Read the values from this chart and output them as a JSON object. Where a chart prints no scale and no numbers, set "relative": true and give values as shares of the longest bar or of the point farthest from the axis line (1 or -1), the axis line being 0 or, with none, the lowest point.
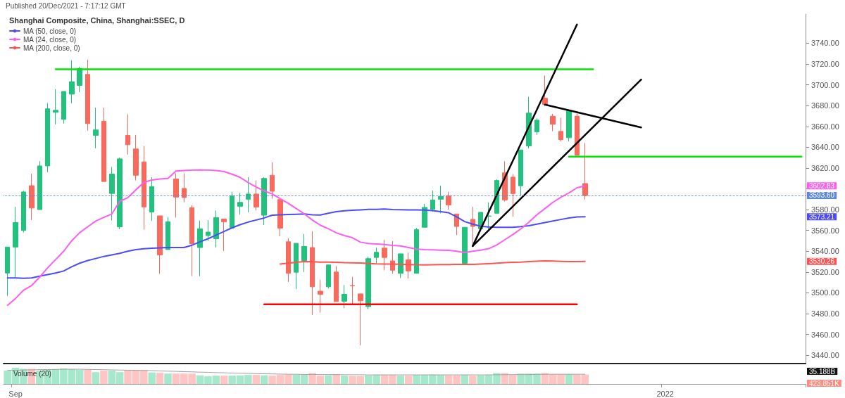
{
  "chart_data": [
    {
      "type": "candlestick",
      "title": "Shanghai Composite, China, Shanghai:SSEC, D",
      "categories": [
        null,
        null,
        null,
        null,
        null,
        null,
        null,
        null,
        null,
        null,
        null,
        null,
        null,
        null,
        null,
        null,
        null,
        null,
        null,
        null,
        null,
        null,
        null,
        null,
        null,
        null,
        null,
        null,
        null,
        null,
        null,
        null,
        null,
        null,
        null,
        null,
        null,
        null,
        null,
        null,
        null,
        null,
        null,
        null,
        null,
        null,
        null,
        null,
        null,
        null,
        null,
        null,
        null,
        null,
        null,
        null,
        null,
        null,
        null,
        null,
        null,
        null,
        null,
        null,
        null,
        null,
        null,
        null,
        null,
        null,
        null,
        null,
        null,
        null,
        null,
        null,
        null,
        null,
        null,
        null,
        null,
        null,
        null,
        null,
        null,
        null,
        null,
        null,
        null,
        null,
        null,
        null,
        null,
        null,
        null,
        null,
        null,
        null,
        null,
        null
      ],
      "ohlc": [
        [
          3519,
          3544,
          3497,
          3544
        ],
        [
          3544,
          3582.6,
          3515,
          3567.5
        ],
        [
          3560,
          3598,
          3558,
          3597
        ],
        [
          3603,
          3614.6,
          3570,
          3581.5
        ],
        [
          3580,
          3626.6,
          3580,
          3622
        ],
        [
          3622,
          3682.5,
          3616,
          3676.9
        ],
        [
          3673.5,
          3695.8,
          3662,
          3675.5
        ],
        [
          3666.7,
          3693.6,
          3662.7,
          3693.6
        ],
        [
          3691,
          3723.6,
          3682.3,
          3703
        ],
        [
          3699.4,
          3717.2,
          3693,
          3715.7
        ],
        [
          3710,
          3724.2,
          3655.9,
          3662.7
        ],
        [
          3651.4,
          3678,
          3639,
          3656.6
        ],
        [
          3665,
          3678,
          3607,
          3607
        ],
        [
          3595.5,
          3621,
          3569.7,
          3614.2
        ],
        [
          3563.4,
          3630,
          3561.2,
          3628.8
        ],
        [
          3651.4,
          3671.7,
          3632.9,
          3642.4
        ],
        [
          3638.3,
          3651.8,
          3608,
          3613
        ],
        [
          3625.9,
          3641.2,
          3560.7,
          3582.6
        ],
        [
          3577.6,
          3611.2,
          3569.1,
          3602.2
        ],
        [
          3574,
          3574,
          3518.3,
          3536.4
        ],
        [
          3541.6,
          3572.9,
          3541.6,
          3568.4
        ],
        [
          3609.4,
          3614.9,
          3572.4,
          3592
        ],
        [
          3600.4,
          3614.9,
          3587,
          3591.6
        ],
        [
          3581.9,
          3584.2,
          3516.1,
          3547.2
        ],
        [
          3543.5,
          3569.4,
          3516,
          3561.6
        ],
        [
          3555,
          3570,
          3549.8,
          3558.4
        ],
        [
          3552,
          3579.1,
          3543.5,
          3572.4
        ],
        [
          3571,
          3571,
          3540.3,
          3568.3
        ],
        [
          3562.2,
          3597.2,
          3562.2,
          3593.3
        ],
        [
          3583.2,
          3596,
          3575.1,
          3587
        ],
        [
          3590,
          3611.2,
          3577.3,
          3595
        ],
        [
          3595,
          3608,
          3579.1,
          3582.5
        ],
        [
          3574.6,
          3611.2,
          3565.2,
          3610
        ],
        [
          3613,
          3625.4,
          3590.4,
          3597.6
        ],
        [
          3589.7,
          3589.7,
          3554.3,
          3562.2
        ],
        [
          3549.1,
          3552.5,
          3510.4,
          3518.7
        ],
        [
          3519.8,
          3547.6,
          3503.6,
          3547.6
        ],
        [
          3530.7,
          3556.6,
          3520,
          3544.6
        ],
        [
          3543.5,
          3559.3,
          3478.8,
          3505.8
        ],
        [
          3501.6,
          3512.6,
          3481,
          3498.6
        ],
        [
          3505.8,
          3526.8,
          3504.3,
          3526.8
        ],
        [
          3520,
          3525.7,
          3491.6,
          3491.6
        ],
        [
          3491.9,
          3507.4,
          3485.1,
          3498.6
        ],
        [
          3507,
          3515.3,
          3489.4,
          3506.6
        ],
        [
          3499,
          3499,
          3449.5,
          3492.3
        ],
        [
          3486.7,
          3534.5,
          3484.4,
          3532.9
        ],
        [
          3534,
          3543.5,
          3528.4,
          3539
        ],
        [
          3543,
          3551,
          3521.6,
          3534
        ],
        [
          3530.7,
          3549.9,
          3518.3,
          3521.7
        ],
        [
          3518.7,
          3537.5,
          3514.2,
          3537.5
        ],
        [
          3531.8,
          3538.6,
          3513.8,
          3521
        ],
        [
          3518.7,
          3562.3,
          3518.7,
          3560.7
        ],
        [
          3563,
          3585.5,
          3563,
          3582.1
        ],
        [
          3580.3,
          3598.4,
          3578.1,
          3589.3
        ],
        [
          3590,
          3602.9,
          3576.5,
          3592.7
        ],
        [
          3593.2,
          3597.2,
          3579.9,
          3584.4
        ],
        [
          3575.8,
          3575.8,
          3555.5,
          3563.8
        ],
        [
          3528.4,
          3563,
          3526.9,
          3563
        ],
        [
          3570.6,
          3582.6,
          3546.5,
          3563.8
        ],
        [
          3561.6,
          3577.4,
          3561.6,
          3577.4
        ],
        [
          3573.6,
          3587,
          3561,
          3573.9
        ],
        [
          3576.5,
          3609,
          3576.5,
          3608
        ],
        [
          3615.3,
          3626.5,
          3587.8,
          3589.3
        ],
        [
          3611.2,
          3614.1,
          3573.1,
          3595.4
        ],
        [
          3602.9,
          3637.4,
          3592.7,
          3637.4
        ],
        [
          3641.2,
          3688.6,
          3638.9,
          3672.8
        ],
        [
          3654.7,
          3667.6,
          3651.8,
          3666
        ],
        [
          3687,
          3708.9,
          3679.5,
          3681.1
        ],
        [
          3669.8,
          3672.1,
          3655.4,
          3662
        ],
        [
          3655.2,
          3668.3,
          3645.7,
          3647.3
        ],
        [
          3649.1,
          3676.2,
          3645.7,
          3675
        ],
        [
          3669.8,
          3672.8,
          3632.2,
          3632.2
        ],
        [
          3605.1,
          3644.1,
          3589.8,
          3593.6
        ],
        null,
        null,
        null,
        null,
        null,
        null,
        null,
        null,
        null,
        null,
        null,
        null,
        null,
        null,
        null,
        null,
        null,
        null,
        null,
        null,
        null,
        null,
        null,
        null,
        null,
        null,
        null
      ],
      "colors": [
        "#22c17e",
        "#22c17e",
        "#22c17e",
        "#f96a5d",
        "#22c17e",
        "#22c17e",
        "#22c17e",
        "#22c17e",
        "#22c17e",
        "#22c17e",
        "#f96a5d",
        "#22c17e",
        "#f96a5d",
        "#22c17e",
        "#22c17e",
        "#f96a5d",
        "#f96a5d",
        "#f96a5d",
        "#22c17e",
        "#f96a5d",
        "#22c17e",
        "#f96a5d",
        "#f96a5d",
        "#f96a5d",
        "#22c17e",
        "#22c17e",
        "#22c17e",
        "#f96a5d",
        "#22c17e",
        "#22c17e",
        "#22c17e",
        "#f96a5d",
        "#22c17e",
        "#f96a5d",
        "#f96a5d",
        "#f96a5d",
        "#22c17e",
        "#22c17e",
        "#f96a5d",
        "#f96a5d",
        "#22c17e",
        "#f96a5d",
        "#22c17e",
        "#f96a5d",
        "#f96a5d",
        "#22c17e",
        "#22c17e",
        "#f96a5d",
        "#f96a5d",
        "#22c17e",
        "#f96a5d",
        "#22c17e",
        "#22c17e",
        "#22c17e",
        "#22c17e",
        "#f96a5d",
        "#f96a5d",
        "#22c17e",
        "#f96a5d",
        "#22c17e",
        "#22c17e",
        "#22c17e",
        "#f96a5d",
        "#f96a5d",
        "#22c17e",
        "#22c17e",
        "#22c17e",
        "#f96a5d",
        "#f96a5d",
        "#f96a5d",
        "#22c17e",
        "#f96a5d",
        "#f96a5d",
        null,
        null,
        null,
        null,
        null,
        null,
        null,
        null,
        null,
        null,
        null,
        null,
        null,
        null,
        null,
        null,
        null,
        null,
        null,
        null,
        null,
        null,
        null,
        null,
        null,
        null,
        null
      ],
      "series": [
        {
          "type": "line",
          "name": "MA (50, close, 0)",
          "color": "#4b4bff",
          "values": [
            3514.3,
            3514.3,
            3514,
            3514.3,
            3516,
            3517.5,
            3519,
            3521,
            3525,
            3528.5,
            3531,
            3533,
            3535,
            3536.5,
            3538,
            3540,
            3541.5,
            3542.3,
            3542.8,
            3543.2,
            3543.6,
            3543.6,
            3543.6,
            3545.8,
            3549,
            3552,
            3555.5,
            3559,
            3562.5,
            3565.5,
            3568,
            3570,
            3572,
            3574.6,
            3575,
            3575.3,
            3575.5,
            3575.8,
            3575,
            3574.8,
            3576.5,
            3578,
            3578.8,
            3579.3,
            3579.8,
            3580.2,
            3580.3,
            3580.5,
            3580,
            3579.9,
            3579.8,
            3579.7,
            3579.6,
            3579,
            3578,
            3577,
            3573,
            3568.5,
            3566,
            3564,
            3563.3,
            3563,
            3563,
            3563,
            3563.6,
            3564.5,
            3566,
            3567.5,
            3569,
            3570.5,
            3572,
            3573,
            3573.21,
            null,
            null,
            null,
            null,
            null,
            null,
            null,
            null,
            null,
            null,
            null,
            null,
            null,
            null,
            null,
            null,
            null,
            null,
            null,
            null,
            null,
            null,
            null,
            null,
            null,
            null,
            null
          ]
        },
        {
          "type": "line",
          "name": "MA (24, close, 0)",
          "color": "#ff5cf0",
          "values": [
            3488,
            3494.6,
            3502.5,
            3507,
            3515,
            3524,
            3532,
            3540,
            3550,
            3557.8,
            3563.5,
            3569,
            3572.5,
            3575.8,
            3588,
            3591.5,
            3599,
            3606.3,
            3608.5,
            3609.5,
            3610,
            3617,
            3617.6,
            3618,
            3618.2,
            3618,
            3617.5,
            3616.6,
            3614,
            3611,
            3606,
            3601.7,
            3598,
            3595,
            3590.5,
            3586,
            3581,
            3576,
            3570,
            3565,
            3561.5,
            3557.7,
            3555,
            3553,
            3548.7,
            3547.5,
            3547,
            3546.4,
            3545.5,
            3545,
            3543.5,
            3542,
            3541.5,
            3541.3,
            3541,
            3540.8,
            3540,
            3538.6,
            3540,
            3541,
            3542.5,
            3546,
            3551,
            3556,
            3561.5,
            3567.9,
            3575,
            3581,
            3587,
            3592,
            3596,
            3601,
            3602.83,
            null,
            null,
            null,
            null,
            null,
            null,
            null,
            null,
            null,
            null,
            null,
            null,
            null,
            null,
            null,
            null,
            null,
            null,
            null,
            null,
            null,
            null,
            null,
            null,
            null,
            null,
            null
          ]
        },
        {
          "type": "line",
          "name": "MA (200, close, 0)",
          "color": "#ff5252",
          "values": [
            null,
            null,
            null,
            null,
            null,
            null,
            null,
            null,
            null,
            null,
            null,
            null,
            null,
            null,
            null,
            null,
            null,
            null,
            null,
            null,
            null,
            null,
            null,
            null,
            null,
            null,
            null,
            null,
            null,
            null,
            null,
            null,
            null,
            null,
            3527.7,
            3528.5,
            3529.3,
            3530,
            3529.8,
            3529.6,
            3529.5,
            3529.3,
            3529,
            3528.9,
            3528.6,
            3528.2,
            3527.8,
            3527.7,
            3527.6,
            3527.4,
            3527.2,
            3527,
            3526.9,
            3527,
            3527.1,
            3527.2,
            3527.3,
            3527.3,
            3527.3,
            3527.6,
            3528,
            3528.5,
            3529,
            3529.4,
            3529.6,
            3530,
            3530.4,
            3530.7,
            3530.5,
            3530.2,
            3530,
            3530.1,
            3530.26,
            null,
            null,
            null,
            null,
            null,
            null,
            null,
            null,
            null,
            null,
            null,
            null,
            null,
            null,
            null,
            null,
            null,
            null,
            null,
            null,
            null,
            null,
            null,
            null,
            null,
            null,
            null
          ]
        },
        {
          "type": "line",
          "color": "#00e600",
          "values": [
            null,
            null,
            null,
            null,
            null,
            null,
            3715,
            null,
            null,
            null,
            null,
            null,
            null,
            null,
            null,
            null,
            null,
            null,
            null,
            null,
            null,
            null,
            null,
            null,
            null,
            null,
            null,
            null,
            null,
            null,
            null,
            null,
            null,
            null,
            null,
            null,
            null,
            null,
            null,
            null,
            null,
            null,
            null,
            null,
            null,
            null,
            null,
            null,
            null,
            null,
            null,
            null,
            null,
            null,
            null,
            null,
            null,
            null,
            null,
            null,
            null,
            null,
            null,
            null,
            null,
            null,
            null,
            null,
            null,
            null,
            null,
            null,
            null,
            3715,
            null,
            null,
            null,
            null,
            null,
            null,
            null,
            null,
            null,
            null,
            null,
            null,
            null,
            null,
            null,
            null,
            null,
            null,
            null,
            null,
            null,
            null,
            null,
            null,
            null,
            null
          ]
        },
        {
          "type": "line",
          "color": "#00e600",
          "values": [
            null,
            null,
            null,
            null,
            null,
            null,
            null,
            null,
            null,
            null,
            null,
            null,
            null,
            null,
            null,
            null,
            null,
            null,
            null,
            null,
            null,
            null,
            null,
            null,
            null,
            null,
            null,
            null,
            null,
            null,
            null,
            null,
            null,
            null,
            null,
            null,
            null,
            null,
            null,
            null,
            null,
            null,
            null,
            null,
            null,
            null,
            null,
            null,
            null,
            null,
            null,
            null,
            null,
            null,
            null,
            null,
            null,
            null,
            null,
            null,
            null,
            null,
            null,
            null,
            null,
            null,
            null,
            null,
            null,
            null,
            3631,
            null,
            null,
            null,
            null,
            null,
            null,
            null,
            null,
            null,
            null,
            null,
            null,
            null,
            null,
            null,
            null,
            null,
            null,
            null,
            null,
            null,
            null,
            null,
            null,
            null,
            null,
            null,
            null,
            3631
          ]
        },
        {
          "type": "line",
          "color": "#ff0000",
          "values": [
            null,
            null,
            null,
            null,
            null,
            null,
            null,
            null,
            null,
            null,
            null,
            null,
            null,
            null,
            null,
            null,
            null,
            null,
            null,
            null,
            null,
            null,
            null,
            null,
            null,
            null,
            null,
            null,
            null,
            null,
            null,
            null,
            3489,
            null,
            null,
            null,
            null,
            null,
            null,
            null,
            null,
            null,
            null,
            null,
            null,
            null,
            null,
            null,
            null,
            null,
            null,
            null,
            null,
            null,
            null,
            null,
            null,
            null,
            null,
            null,
            null,
            null,
            null,
            null,
            null,
            null,
            null,
            null,
            null,
            null,
            null,
            3489,
            null,
            null,
            null,
            null,
            null,
            null,
            null,
            null,
            null,
            null,
            null,
            null,
            null,
            null,
            null,
            null,
            null,
            null,
            null,
            null,
            null,
            null,
            null,
            null,
            null,
            null,
            null,
            null
          ]
        },
        {
          "type": "line",
          "color": "#000000",
          "values": [
            null,
            null,
            null,
            null,
            null,
            null,
            null,
            null,
            null,
            null,
            null,
            null,
            null,
            null,
            null,
            null,
            null,
            null,
            null,
            null,
            null,
            null,
            null,
            null,
            null,
            null,
            null,
            null,
            null,
            null,
            null,
            null,
            null,
            null,
            null,
            null,
            null,
            null,
            null,
            null,
            null,
            null,
            null,
            null,
            null,
            null,
            null,
            null,
            null,
            null,
            null,
            null,
            null,
            null,
            null,
            null,
            null,
            null,
            3545,
            null,
            null,
            null,
            null,
            null,
            null,
            null,
            null,
            null,
            null,
            null,
            null,
            3758,
            null,
            null,
            null,
            null,
            null,
            null,
            null,
            null,
            null,
            null,
            null,
            null,
            null,
            null,
            null,
            null,
            null,
            null,
            null,
            null,
            null,
            null,
            null,
            null,
            null,
            null,
            null,
            null
          ]
        },
        {
          "type": "line",
          "color": "#000000",
          "values": [
            null,
            null,
            null,
            null,
            null,
            null,
            null,
            null,
            null,
            null,
            null,
            null,
            null,
            null,
            null,
            null,
            null,
            null,
            null,
            null,
            null,
            null,
            null,
            null,
            null,
            null,
            null,
            null,
            null,
            null,
            null,
            null,
            null,
            null,
            null,
            null,
            null,
            null,
            null,
            null,
            null,
            null,
            null,
            null,
            null,
            null,
            null,
            null,
            null,
            null,
            null,
            null,
            null,
            null,
            null,
            null,
            null,
            null,
            3545,
            null,
            null,
            null,
            null,
            null,
            null,
            null,
            null,
            null,
            null,
            null,
            null,
            null,
            null,
            null,
            null,
            null,
            null,
            null,
            null,
            3705,
            null,
            null,
            null,
            null,
            null,
            null,
            null,
            null,
            null,
            null,
            null,
            null,
            null,
            null,
            null,
            null,
            null,
            null,
            null,
            null
          ]
        },
        {
          "type": "line",
          "color": "#000000",
          "values": [
            null,
            null,
            null,
            null,
            null,
            null,
            null,
            null,
            null,
            null,
            null,
            null,
            null,
            null,
            null,
            null,
            null,
            null,
            null,
            null,
            null,
            null,
            null,
            null,
            null,
            null,
            null,
            null,
            null,
            null,
            null,
            null,
            null,
            null,
            null,
            null,
            null,
            null,
            null,
            null,
            null,
            null,
            null,
            null,
            null,
            null,
            null,
            null,
            null,
            null,
            null,
            null,
            null,
            null,
            null,
            null,
            null,
            null,
            null,
            null,
            null,
            null,
            null,
            null,
            null,
            null,
            null,
            3681,
            null,
            null,
            null,
            null,
            null,
            null,
            null,
            null,
            null,
            null,
            null,
            3659,
            null,
            null,
            null,
            null,
            null,
            null,
            null,
            null,
            null,
            null,
            null,
            null,
            null,
            null,
            null,
            null,
            null,
            null,
            null,
            null
          ]
        }
      ],
      "ylim": [
        3432,
        3768
      ],
      "yticks": [
        {
          "value": 3440,
          "label": "3440.00"
        },
        {
          "value": 3460,
          "label": "3460.00"
        },
        {
          "value": 3480,
          "label": "3480.00"
        },
        {
          "value": 3500,
          "label": "3500.00"
        },
        {
          "value": 3520,
          "label": "3520.00"
        },
        {
          "value": 3540,
          "label": "3540.00"
        },
        {
          "value": 3560,
          "label": "3560.00"
        },
        {
          "value": 3580,
          "label": "3580.00"
        },
        {
          "value": 3600,
          "label": null
        },
        {
          "value": 3620,
          "label": "3620.00"
        },
        {
          "value": 3640,
          "label": "3640.00"
        },
        {
          "value": 3660,
          "label": "3660.00"
        },
        {
          "value": 3680,
          "label": "3680.00"
        },
        {
          "value": 3700,
          "label": "3700.00"
        },
        {
          "value": 3720,
          "label": "3720.00"
        },
        {
          "value": 3740,
          "label": "3740.00"
        }
      ],
      "ref_lines": [
        {
          "axis": "y",
          "value": 3593.6,
          "label": "3593.60",
          "color": "#5b86e5",
          "line_style": "dotted"
        }
      ],
      "annotations": [
        "Published 20/Dec/2021 - 7:17:12 GMT",
        "3573.21",
        "3602.83",
        "3530.26"
      ],
      "legend": "top left",
      "tick_labels": "y"
    },
    {
      "type": "bar",
      "title": "Volume (20)",
      "relative": true,
      "categories": [
        null,
        "Sep",
        null,
        null,
        null,
        null,
        null,
        null,
        null,
        null,
        null,
        null,
        null,
        null,
        null,
        null,
        null,
        null,
        null,
        null,
        null,
        null,
        null,
        null,
        null,
        null,
        null,
        null,
        null,
        null,
        null,
        null,
        null,
        null,
        null,
        null,
        null,
        null,
        null,
        null,
        null,
        null,
        null,
        null,
        null,
        null,
        null,
        null,
        null,
        null,
        null,
        null,
        null,
        null,
        null,
        null,
        null,
        null,
        null,
        null,
        null,
        null,
        null,
        null,
        null,
        null,
        null,
        null,
        null,
        null,
        null,
        null,
        null,
        null,
        null,
        null,
        null,
        null,
        null,
        null,
        null,
        null,
        "2022",
        null,
        null,
        null,
        null,
        null,
        null,
        null,
        null,
        null,
        null,
        null,
        null,
        null,
        null,
        null,
        null,
        null
      ],
      "values": [
        0.82,
        1,
        0.93,
        0.93,
        0.82,
        0.87,
        0.91,
        0.96,
        0.91,
        0.87,
        0.87,
        0.73,
        0.82,
        0.82,
        0.73,
        0.87,
        0.87,
        0.87,
        0.71,
        0.69,
        0.64,
        0.64,
        0.64,
        0.64,
        0.53,
        0.47,
        0.51,
        0.51,
        0.51,
        0.53,
        0.56,
        0.56,
        0.53,
        0.51,
        0.56,
        0.58,
        0.58,
        0.58,
        0.67,
        0.51,
        0.53,
        0.58,
        0.51,
        0.49,
        0.49,
        0.53,
        0.56,
        0.56,
        0.56,
        0.51,
        0.51,
        0.56,
        0.56,
        0.58,
        0.56,
        0.53,
        0.53,
        0.56,
        0.51,
        0.53,
        0.56,
        0.67,
        0.67,
        0.56,
        0.64,
        0.64,
        0.64,
        0.67,
        0.6,
        0.6,
        0.6,
        0.58,
        0.58,
        null,
        null,
        null,
        null,
        null,
        null,
        null,
        null,
        null,
        null,
        null,
        null,
        null,
        null,
        null,
        null,
        null,
        null,
        null,
        null,
        null,
        null,
        null,
        null,
        null,
        null,
        null
      ],
      "colors": [
        "#a6e8cb",
        "#a6e8cb",
        "#a6e8cb",
        "#ffc5c3",
        "#a6e8cb",
        "#a6e8cb",
        "#a6e8cb",
        "#a6e8cb",
        "#a6e8cb",
        "#a6e8cb",
        "#ffc5c3",
        "#a6e8cb",
        "#ffc5c3",
        "#a6e8cb",
        "#a6e8cb",
        "#ffc5c3",
        "#ffc5c3",
        "#ffc5c3",
        "#a6e8cb",
        "#ffc5c3",
        "#a6e8cb",
        "#ffc5c3",
        "#ffc5c3",
        "#ffc5c3",
        "#a6e8cb",
        "#a6e8cb",
        "#a6e8cb",
        "#ffc5c3",
        "#a6e8cb",
        "#a6e8cb",
        "#a6e8cb",
        "#ffc5c3",
        "#a6e8cb",
        "#ffc5c3",
        "#ffc5c3",
        "#ffc5c3",
        "#a6e8cb",
        "#a6e8cb",
        "#ffc5c3",
        "#ffc5c3",
        "#a6e8cb",
        "#ffc5c3",
        "#a6e8cb",
        "#ffc5c3",
        "#ffc5c3",
        "#a6e8cb",
        "#a6e8cb",
        "#ffc5c3",
        "#ffc5c3",
        "#a6e8cb",
        "#ffc5c3",
        "#a6e8cb",
        "#a6e8cb",
        "#a6e8cb",
        "#a6e8cb",
        "#ffc5c3",
        "#ffc5c3",
        "#a6e8cb",
        "#ffc5c3",
        "#a6e8cb",
        "#a6e8cb",
        "#a6e8cb",
        "#ffc5c3",
        "#ffc5c3",
        "#a6e8cb",
        "#a6e8cb",
        "#a6e8cb",
        "#ffc5c3",
        "#ffc5c3",
        "#ffc5c3",
        "#a6e8cb",
        "#ffc5c3",
        "#ffc5c3",
        null,
        null,
        null,
        null,
        null,
        null,
        null,
        null,
        null,
        null,
        null,
        null,
        null,
        null,
        null,
        null,
        null,
        null,
        null,
        null,
        null,
        null,
        null,
        null,
        null,
        null,
        null
      ],
      "series": [
        {
          "type": "line",
          "color": "#a0a0a0",
          "values": [
            0.84,
            0.85,
            0.86,
            0.87,
            0.88,
            0.89,
            0.9,
            0.91,
            0.91,
            0.91,
            0.9,
            0.89,
            0.88,
            0.87,
            0.86,
            0.85,
            0.84,
            0.83,
            0.82,
            0.8,
            0.79,
            0.78,
            0.76,
            0.75,
            0.73,
            0.72,
            0.7,
            0.69,
            0.67,
            0.66,
            0.65,
            0.64,
            0.63,
            0.62,
            0.61,
            0.6,
            0.6,
            0.59,
            0.59,
            0.58,
            0.58,
            0.58,
            0.57,
            0.57,
            0.57,
            0.56,
            0.56,
            0.56,
            0.56,
            0.56,
            0.56,
            0.56,
            0.56,
            0.56,
            0.56,
            0.56,
            0.56,
            0.56,
            0.56,
            0.56,
            0.56,
            0.57,
            0.57,
            0.58,
            0.58,
            0.58,
            0.59,
            0.6,
            0.6,
            0.6,
            0.6,
            0.6,
            0.6,
            null,
            null,
            null,
            null,
            null,
            null,
            null,
            null,
            null,
            null,
            null,
            null,
            null,
            null,
            null,
            null,
            null,
            null,
            null,
            null,
            null,
            null,
            null,
            null,
            null,
            null,
            null
          ]
        }
      ],
      "annotations": [
        "35.188B",
        "423.851K"
      ],
      "tick_labels": "x"
    }
  ]
}
